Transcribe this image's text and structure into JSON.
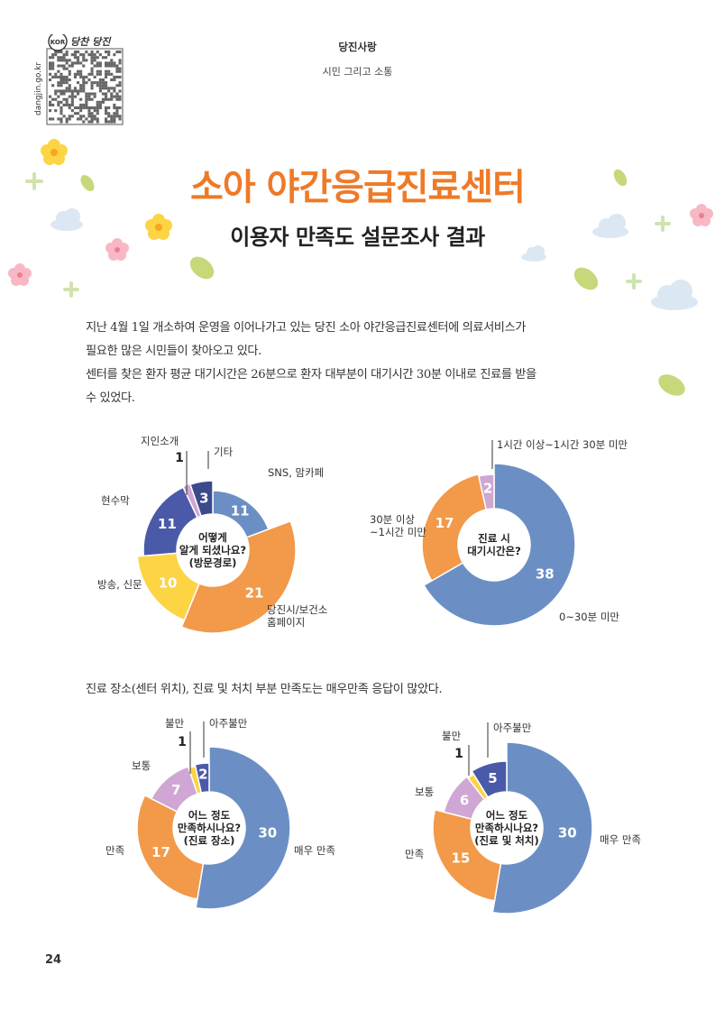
{
  "header": {
    "section": "당진사랑",
    "subsection": "시민 그리고 소통",
    "url": "dangjin.go.kr",
    "logo_text": "KOR",
    "logo_script": "당찬 당진"
  },
  "title": "소아 야간응급진료센터",
  "subtitle": "이용자 만족도 설문조사 결과",
  "paragraphs": {
    "p1_line1": "지난 4월 1일 개소하여 운영을 이어나가고 있는 당진 소아 야간응급진료센터에 의료서비스가",
    "p1_line2": "필요한 많은 시민들이 찾아오고 있다.",
    "p2_line1": "센터를 찾은 환자 평균 대기시간은 26분으로 환자 대부분이 대기시간 30분 이내로 진료를 받을",
    "p2_line2": "수 있었다.",
    "p3": "진료 장소(센터 위치), 진료 및 처치 부분 만족도는 매우만족 응답이 많았다."
  },
  "page_number": "24",
  "colors": {
    "title_orange": "#ee7a27",
    "steel_blue": "#6b8fc4",
    "orange": "#f2994a",
    "yellow": "#fcd444",
    "navy": "#4a5aa8",
    "lavender": "#cfa6d4",
    "dark_navy": "#3c4a8c"
  },
  "chart_data": [
    {
      "type": "pie",
      "title": "어떻게 알게 되셨나요? (방문경로)",
      "title_lines": [
        "어떻게",
        "알게 되셨나요?",
        "(방문경로)"
      ],
      "slices": [
        {
          "label": "SNS, 맘카페",
          "value": 11,
          "color": "#6b8fc4"
        },
        {
          "label": "당진시/보건소 홈페이지",
          "value": 21,
          "color": "#f2994a"
        },
        {
          "label": "방송, 신문",
          "value": 10,
          "color": "#fcd444"
        },
        {
          "label": "현수막",
          "value": 11,
          "color": "#4a5aa8"
        },
        {
          "label": "지인소개",
          "value": 1,
          "color": "#cfa6d4"
        },
        {
          "label": "기타",
          "value": 3,
          "color": "#3c4a8c"
        }
      ]
    },
    {
      "type": "pie",
      "title": "진료 시 대기시간은?",
      "title_lines": [
        "진료 시",
        "대기시간은?"
      ],
      "slices": [
        {
          "label": "0~30분 미만",
          "value": 38,
          "color": "#6b8fc4"
        },
        {
          "label": "30분 이상 ~1시간 미만",
          "value": 17,
          "color": "#f2994a"
        },
        {
          "label": "1시간 이상~1시간 30분 미만",
          "value": 2,
          "color": "#cfa6d4"
        }
      ]
    },
    {
      "type": "pie",
      "title": "어느 정도 만족하시나요? (진료 장소)",
      "title_lines": [
        "어느 정도",
        "만족하시나요?",
        "(진료 장소)"
      ],
      "slices": [
        {
          "label": "매우 만족",
          "value": 30,
          "color": "#6b8fc4"
        },
        {
          "label": "만족",
          "value": 17,
          "color": "#f2994a"
        },
        {
          "label": "보통",
          "value": 7,
          "color": "#cfa6d4"
        },
        {
          "label": "불만",
          "value": 1,
          "color": "#fcd444"
        },
        {
          "label": "아주불만",
          "value": 2,
          "color": "#4a5aa8"
        }
      ]
    },
    {
      "type": "pie",
      "title": "어느 정도 만족하시나요? (진료 및 처치)",
      "title_lines": [
        "어느 정도",
        "만족하시나요?",
        "(진료 및 처치)"
      ],
      "slices": [
        {
          "label": "매우 만족",
          "value": 30,
          "color": "#6b8fc4"
        },
        {
          "label": "만족",
          "value": 15,
          "color": "#f2994a"
        },
        {
          "label": "보통",
          "value": 6,
          "color": "#cfa6d4"
        },
        {
          "label": "불만",
          "value": 1,
          "color": "#fcd444"
        },
        {
          "label": "아주불만",
          "value": 5,
          "color": "#4a5aa8"
        }
      ]
    }
  ]
}
